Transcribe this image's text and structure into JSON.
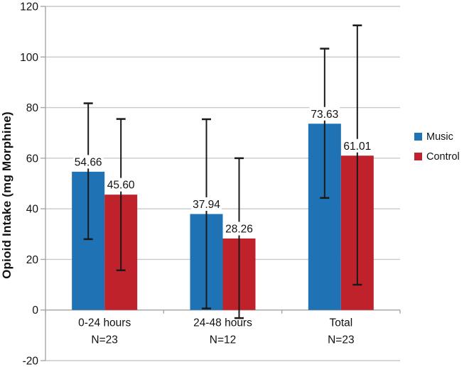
{
  "chart_data": {
    "type": "bar",
    "title": "",
    "xlabel": "",
    "ylabel": "Opioid Intake (mg Morphine)",
    "ylim": [
      -20,
      120
    ],
    "ytick_step": 20,
    "grid": true,
    "legend_position": "right",
    "categories": [
      {
        "label": "0-24 hours",
        "sublabel": "N=23"
      },
      {
        "label": "24-48 hours",
        "sublabel": "N=12"
      },
      {
        "label": "Total",
        "sublabel": "N=23"
      }
    ],
    "series": [
      {
        "name": "Music",
        "color": "#1F72B4",
        "values": [
          54.66,
          37.94,
          73.63
        ],
        "error_low": [
          28.0,
          0.6,
          44.3
        ],
        "error_high": [
          81.7,
          75.4,
          103.3
        ]
      },
      {
        "name": "Control",
        "color": "#C0222C",
        "values": [
          45.6,
          28.26,
          61.01
        ],
        "error_low": [
          15.7,
          -3.2,
          10.0
        ],
        "error_high": [
          75.5,
          60.0,
          112.5
        ]
      }
    ],
    "value_labels": [
      "54.66",
      "37.94",
      "73.63",
      "45.60",
      "28.26",
      "61.01"
    ]
  },
  "colors": {
    "background": "#FFFFFF",
    "gridline": "#C9C9C9",
    "axis": "#A6A6A6",
    "error_bar": "#1A1A1A",
    "text": "#111111",
    "value_label_bg": "#FFFFFF"
  }
}
